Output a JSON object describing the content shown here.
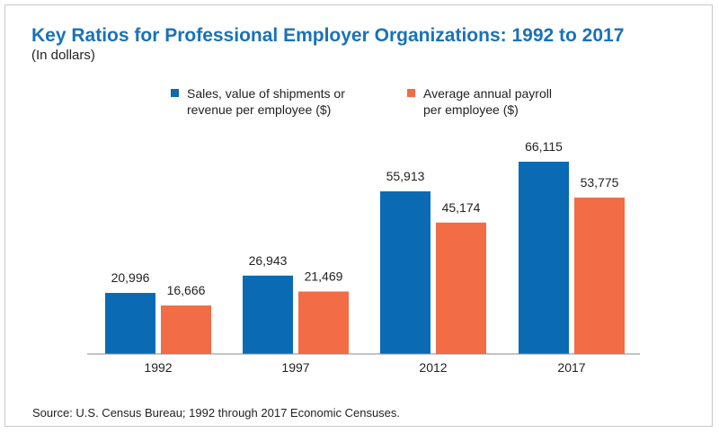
{
  "title": "Key Ratios for Professional Employer Organizations: 1992 to 2017",
  "subtitle": "(In dollars)",
  "source": "Source: U.S. Census Bureau; 1992 through 2017 Economic Censuses.",
  "colors": {
    "title": "#1a72b8",
    "sales": "#0a6ab4",
    "payroll": "#f26c45",
    "axis": "#888888",
    "text": "#222222"
  },
  "legend": [
    {
      "line1": "Sales, value of shipments or",
      "line2": "revenue per employee ($)",
      "color": "#0a6ab4"
    },
    {
      "line1": "Average annual payroll",
      "line2": "per employee ($)",
      "color": "#f26c45"
    }
  ],
  "chart_data": {
    "type": "bar",
    "categories": [
      "1992",
      "1997",
      "2012",
      "2017"
    ],
    "series": [
      {
        "name": "Sales, value of shipments or revenue per employee ($)",
        "values": [
          20996,
          26943,
          55913,
          66115
        ],
        "labels": [
          "20,996",
          "26,943",
          "55,913",
          "66,115"
        ],
        "color": "#0a6ab4"
      },
      {
        "name": "Average annual payroll per employee ($)",
        "values": [
          16666,
          21469,
          45174,
          53775
        ],
        "labels": [
          "16,666",
          "21,469",
          "45,174",
          "53,775"
        ],
        "color": "#f26c45"
      }
    ],
    "ylim": [
      0,
      80000
    ],
    "grid": false,
    "legend_position": "top"
  }
}
